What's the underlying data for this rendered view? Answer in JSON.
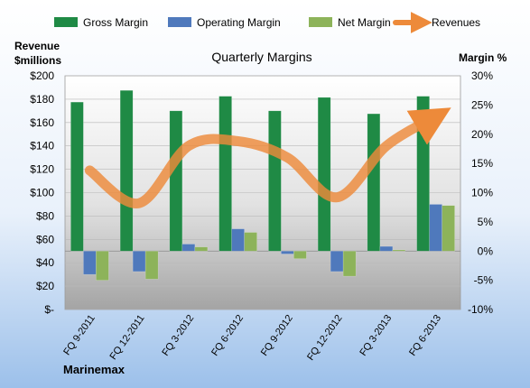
{
  "chart_data": {
    "type": "bar",
    "title": "Quarterly Margins",
    "company": "Marinemax",
    "y_left_label_line1": "Revenue",
    "y_left_label_line2": "$millions",
    "y_right_label": "Margin %",
    "categories": [
      "FQ 9-2011",
      "FQ 12-2011",
      "FQ 3-2012",
      "FQ 6-2012",
      "FQ 9-2012",
      "FQ 12-2012",
      "FQ 3-2013",
      "FQ 6-2013"
    ],
    "y_left": {
      "min": 0,
      "max": 200,
      "step": 20,
      "tick_labels": [
        "$-",
        "$20",
        "$40",
        "$60",
        "$80",
        "$100",
        "$120",
        "$140",
        "$160",
        "$180",
        "$200"
      ]
    },
    "y_right": {
      "min": -10,
      "max": 30,
      "step": 5,
      "tick_labels": [
        "-10%",
        "-5%",
        "0%",
        "5%",
        "10%",
        "15%",
        "20%",
        "25%",
        "30%"
      ]
    },
    "legend_position": "top",
    "series": [
      {
        "name": "Gross Margin",
        "kind": "bar",
        "axis": "right",
        "color": "#1f8a45",
        "values": [
          25.5,
          27.5,
          24.0,
          26.5,
          24.0,
          26.3,
          23.5,
          26.5
        ]
      },
      {
        "name": "Operating Margin",
        "kind": "bar",
        "axis": "right",
        "color": "#4f79bc",
        "values": [
          -4.0,
          -3.5,
          1.2,
          3.8,
          -0.5,
          -3.5,
          0.8,
          8.0
        ]
      },
      {
        "name": "Net Margin",
        "kind": "bar",
        "axis": "right",
        "color": "#8db35a",
        "values": [
          -5.0,
          -4.8,
          0.7,
          3.2,
          -1.3,
          -4.3,
          0.2,
          7.8
        ]
      },
      {
        "name": "Revenues",
        "kind": "line",
        "axis": "left",
        "color": "#ed8a3a",
        "values": [
          119,
          91,
          140,
          144,
          130,
          96,
          140,
          165
        ]
      }
    ]
  }
}
